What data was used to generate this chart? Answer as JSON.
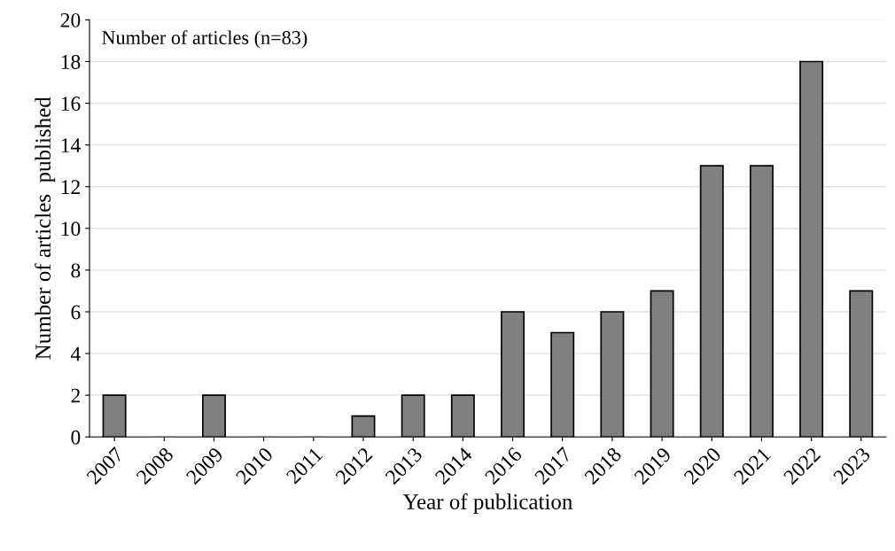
{
  "chart_data": {
    "type": "bar",
    "xlabel": "Year of publication",
    "ylabel": "Number of articles  published",
    "categories": [
      "2007",
      "2008",
      "2009",
      "2010",
      "2011",
      "2012",
      "2013",
      "2014",
      "2016",
      "2017",
      "2018",
      "2019",
      "2020",
      "2021",
      "2022",
      "2023"
    ],
    "values": [
      2,
      0,
      2,
      0,
      0,
      1,
      2,
      2,
      6,
      5,
      6,
      7,
      13,
      13,
      18,
      7
    ],
    "color": "#808080",
    "ylim": [
      0,
      20
    ],
    "yticks": [
      0,
      2,
      4,
      6,
      8,
      10,
      12,
      14,
      16,
      18,
      20
    ],
    "grid": "y",
    "annotations": [
      "Number of articles (n=83)"
    ]
  }
}
